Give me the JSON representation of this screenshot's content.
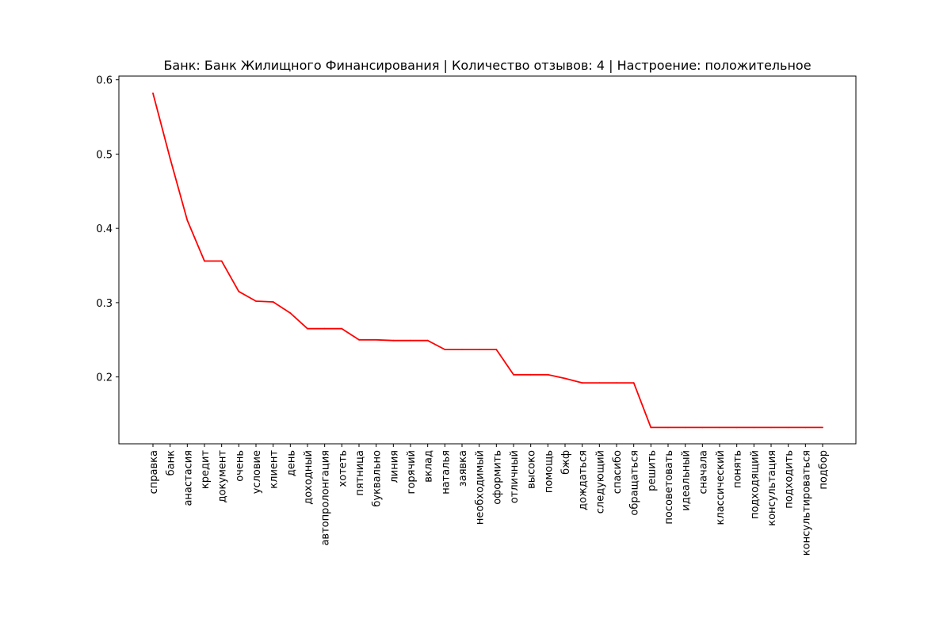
{
  "chart_data": {
    "type": "line",
    "title": "Банк: Банк Жилищного Финансирования | Количество отзывов: 4 | Настроение: положительное",
    "xlabel": "",
    "ylabel": "",
    "color": "#ff0000",
    "grid": false,
    "ylim": [
      0.11,
      0.605
    ],
    "yticks": [
      0.2,
      0.3,
      0.4,
      0.5,
      0.6
    ],
    "ytick_labels": [
      "0.2",
      "0.3",
      "0.4",
      "0.5",
      "0.6"
    ],
    "categories": [
      "справка",
      "банк",
      "анастасия",
      "кредит",
      "документ",
      "очень",
      "условие",
      "клиент",
      "день",
      "доходный",
      "автопролонгация",
      "хотеть",
      "пятница",
      "буквально",
      "линия",
      "горячий",
      "вклад",
      "наталья",
      "заявка",
      "необходимый",
      "оформить",
      "отличный",
      "высоко",
      "помощь",
      "бжф",
      "дождаться",
      "следующий",
      "спасибо",
      "обращаться",
      "решить",
      "посоветовать",
      "идеальный",
      "сначала",
      "классический",
      "понять",
      "подходящий",
      "консультация",
      "подходить",
      "консультироваться",
      "подбор"
    ],
    "values": [
      0.582,
      0.494,
      0.411,
      0.356,
      0.356,
      0.315,
      0.302,
      0.301,
      0.286,
      0.265,
      0.265,
      0.265,
      0.25,
      0.25,
      0.249,
      0.249,
      0.249,
      0.237,
      0.237,
      0.237,
      0.237,
      0.203,
      0.203,
      0.203,
      0.198,
      0.192,
      0.192,
      0.192,
      0.192,
      0.132,
      0.132,
      0.132,
      0.132,
      0.132,
      0.132,
      0.132,
      0.132,
      0.132,
      0.132,
      0.132
    ]
  }
}
